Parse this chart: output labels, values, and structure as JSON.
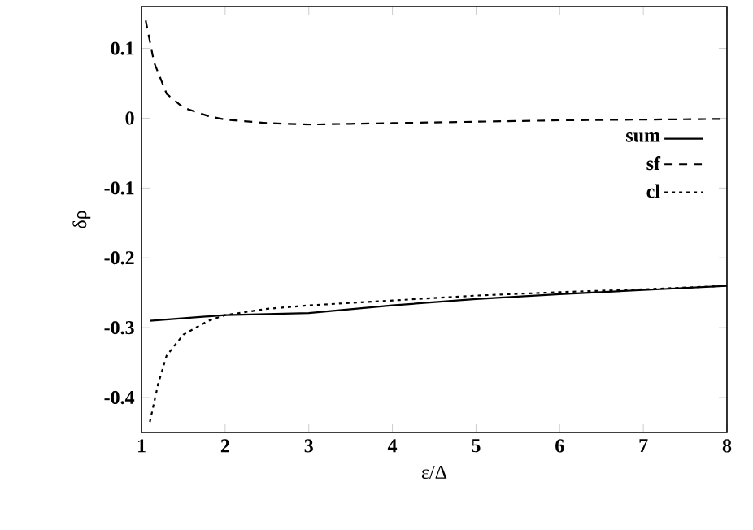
{
  "chart_data": {
    "type": "line",
    "xlabel": "ε/Δ",
    "ylabel": "δρ",
    "xlim": [
      1,
      8
    ],
    "ylim": [
      -0.45,
      0.16
    ],
    "xticks": [
      1,
      2,
      3,
      4,
      5,
      6,
      7,
      8
    ],
    "yticks": [
      -0.4,
      -0.3,
      -0.2,
      -0.1,
      0,
      0.1
    ],
    "legend": "right",
    "grid": false,
    "marker": "none",
    "series": [
      {
        "name": "sum",
        "color": "#000000",
        "line_style": "solid",
        "x": [
          1.1,
          2,
          3,
          4,
          5,
          6,
          7,
          8
        ],
        "values": [
          -0.29,
          -0.282,
          -0.279,
          -0.268,
          -0.259,
          -0.252,
          -0.246,
          -0.24
        ]
      },
      {
        "name": "sf",
        "color": "#000000",
        "line_style": "dashed",
        "x": [
          1.05,
          1.15,
          1.3,
          1.5,
          1.8,
          2,
          2.5,
          3,
          3.5,
          4,
          5,
          6,
          7,
          8
        ],
        "values": [
          0.14,
          0.08,
          0.035,
          0.015,
          0.003,
          -0.002,
          -0.007,
          -0.009,
          -0.008,
          -0.007,
          -0.005,
          -0.003,
          -0.002,
          -0.001
        ]
      },
      {
        "name": "cl",
        "color": "#000000",
        "line_style": "dotted",
        "x": [
          1.1,
          1.2,
          1.3,
          1.5,
          1.8,
          2,
          2.5,
          3,
          4,
          5,
          6,
          7,
          8
        ],
        "values": [
          -0.435,
          -0.38,
          -0.34,
          -0.31,
          -0.29,
          -0.282,
          -0.273,
          -0.268,
          -0.261,
          -0.254,
          -0.249,
          -0.245,
          -0.24
        ]
      }
    ]
  }
}
